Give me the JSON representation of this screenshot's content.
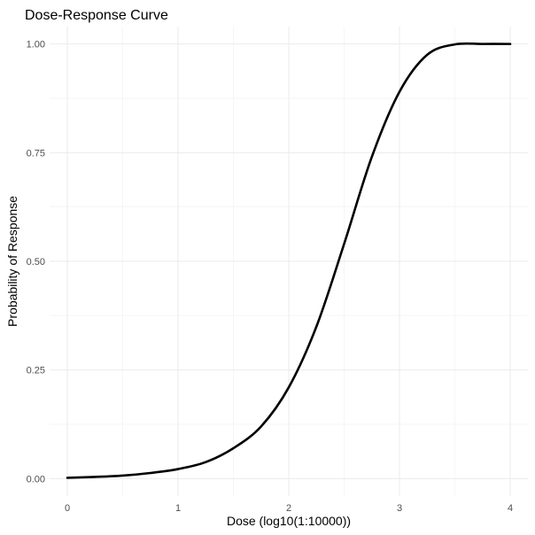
{
  "chart_data": {
    "type": "line",
    "title": "Dose-Response Curve",
    "xlabel": "Dose (log10(1:10000))",
    "ylabel": "Probability of Response",
    "xlim": [
      0,
      4
    ],
    "ylim": [
      0,
      1
    ],
    "x_ticks": [
      0,
      1,
      2,
      3,
      4
    ],
    "x_tick_labels": [
      "0",
      "1",
      "2",
      "3",
      "4"
    ],
    "y_ticks": [
      0,
      0.25,
      0.5,
      0.75,
      1
    ],
    "y_tick_labels": [
      "0.00",
      "0.25",
      "0.50",
      "0.75",
      "1.00"
    ],
    "grid": true,
    "legend": "none",
    "series": [
      {
        "color": "#000000",
        "x": [
          0,
          0.25,
          0.5,
          0.75,
          1.0,
          1.25,
          1.5,
          1.75,
          2.0,
          2.25,
          2.5,
          2.75,
          3.0,
          3.25,
          3.5,
          3.75,
          4.0
        ],
        "y": [
          0.002,
          0.004,
          0.007,
          0.013,
          0.022,
          0.038,
          0.07,
          0.12,
          0.21,
          0.35,
          0.54,
          0.74,
          0.89,
          0.975,
          0.999,
          1.0,
          1.0
        ]
      }
    ]
  }
}
